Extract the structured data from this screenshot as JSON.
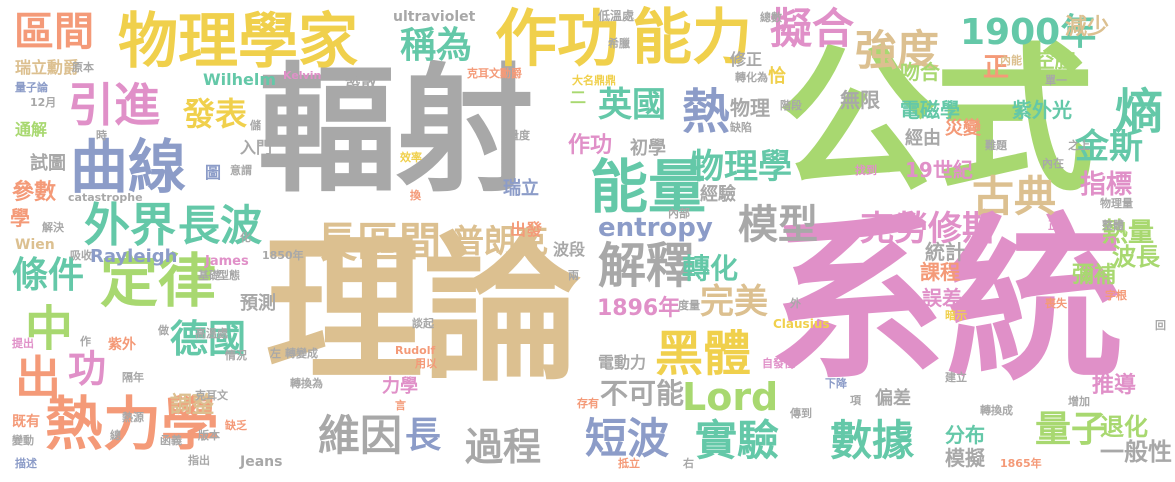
{
  "palette": {
    "gray": "#a8a8a8",
    "tan": "#dcc090",
    "pink": "#e090c8",
    "green": "#a8d870",
    "blue": "#8c9cc8",
    "orange": "#f49a78",
    "teal": "#64c8a8",
    "yellow": "#f0d04c"
  },
  "words": [
    {
      "text": "輻射",
      "color": "gray"
    },
    {
      "text": "理論",
      "color": "tan"
    },
    {
      "text": "系統",
      "color": "pink"
    },
    {
      "text": "公式",
      "color": "green"
    },
    {
      "text": "物理學家",
      "color": "yellow"
    },
    {
      "text": "作功",
      "color": "yellow"
    },
    {
      "text": "能力",
      "color": "yellow"
    },
    {
      "text": "曲線",
      "color": "blue"
    },
    {
      "text": "定律",
      "color": "green"
    },
    {
      "text": "熱力學",
      "color": "orange"
    },
    {
      "text": "能量",
      "color": "teal"
    },
    {
      "text": "外界",
      "color": "teal"
    },
    {
      "text": "長波",
      "color": "teal"
    },
    {
      "text": "解釋",
      "color": "gray"
    },
    {
      "text": "引進",
      "color": "pink"
    },
    {
      "text": "區間",
      "color": "orange"
    },
    {
      "text": "稱為",
      "color": "teal"
    },
    {
      "text": "擬合",
      "color": "pink"
    },
    {
      "text": "強度",
      "color": "tan"
    },
    {
      "text": "1900年",
      "color": "teal"
    },
    {
      "text": "熱",
      "color": "blue"
    },
    {
      "text": "英國",
      "color": "teal"
    },
    {
      "text": "發表",
      "color": "yellow"
    },
    {
      "text": "長區間",
      "color": "tan"
    },
    {
      "text": "普朗克",
      "color": "tan"
    },
    {
      "text": "模型",
      "color": "gray"
    },
    {
      "text": "古典",
      "color": "tan"
    },
    {
      "text": "克勞修斯",
      "color": "pink"
    },
    {
      "text": "物理學",
      "color": "teal"
    },
    {
      "text": "中",
      "color": "green"
    },
    {
      "text": "出",
      "color": "orange"
    },
    {
      "text": "功",
      "color": "pink"
    },
    {
      "text": "條件",
      "color": "teal"
    },
    {
      "text": "德國",
      "color": "teal"
    },
    {
      "text": "黑體",
      "color": "yellow"
    },
    {
      "text": "Lord",
      "color": "green"
    },
    {
      "text": "完美",
      "color": "tan"
    },
    {
      "text": "維因",
      "color": "gray"
    },
    {
      "text": "長",
      "color": "blue"
    },
    {
      "text": "過程",
      "color": "gray"
    },
    {
      "text": "短波",
      "color": "blue"
    },
    {
      "text": "實驗",
      "color": "teal"
    },
    {
      "text": "數據",
      "color": "teal"
    },
    {
      "text": "量子",
      "color": "green"
    },
    {
      "text": "熵",
      "color": "teal"
    },
    {
      "text": "金斯",
      "color": "teal"
    },
    {
      "text": "指標",
      "color": "pink"
    },
    {
      "text": "熱量",
      "color": "green"
    },
    {
      "text": "波長",
      "color": "green"
    },
    {
      "text": "退化",
      "color": "green"
    },
    {
      "text": "一般性",
      "color": "gray"
    },
    {
      "text": "entropy",
      "color": "blue"
    },
    {
      "text": "轉化",
      "color": "teal"
    },
    {
      "text": "不可能",
      "color": "gray"
    },
    {
      "text": "1896年",
      "color": "pink"
    },
    {
      "text": "電磁學",
      "color": "teal"
    },
    {
      "text": "紫外光",
      "color": "teal"
    },
    {
      "text": "空腔",
      "color": "green"
    },
    {
      "text": "吻合",
      "color": "green"
    },
    {
      "text": "減少",
      "color": "tan"
    },
    {
      "text": "19世紀",
      "color": "pink"
    },
    {
      "text": "災變",
      "color": "orange"
    },
    {
      "text": "正",
      "color": "orange"
    },
    {
      "text": "無限",
      "color": "gray"
    },
    {
      "text": "經由",
      "color": "gray"
    },
    {
      "text": "物理",
      "color": "gray"
    },
    {
      "text": "作功",
      "color": "pink"
    },
    {
      "text": "初學",
      "color": "gray"
    },
    {
      "text": "經驗",
      "color": "gray"
    },
    {
      "text": "彌補",
      "color": "green"
    },
    {
      "text": "統計",
      "color": "gray"
    },
    {
      "text": "課程",
      "color": "orange"
    },
    {
      "text": "誤差",
      "color": "pink"
    },
    {
      "text": "推導",
      "color": "pink"
    },
    {
      "text": "分布",
      "color": "teal"
    },
    {
      "text": "模擬",
      "color": "gray"
    },
    {
      "text": "電動力",
      "color": "gray"
    },
    {
      "text": "力學",
      "color": "pink"
    },
    {
      "text": "偏差",
      "color": "gray"
    },
    {
      "text": "瑞立",
      "color": "blue"
    },
    {
      "text": "波段",
      "color": "gray"
    },
    {
      "text": "出發",
      "color": "orange"
    },
    {
      "text": "預測",
      "color": "gray"
    },
    {
      "text": "參數",
      "color": "orange"
    },
    {
      "text": "調整",
      "color": "tan"
    },
    {
      "text": "試圖",
      "color": "gray"
    },
    {
      "text": "通解",
      "color": "green"
    },
    {
      "text": "瑞立勳爵",
      "color": "tan"
    },
    {
      "text": "量子論",
      "color": "blue"
    },
    {
      "text": "12月",
      "color": "gray"
    },
    {
      "text": "學",
      "color": "orange"
    },
    {
      "text": "Wien",
      "color": "tan"
    },
    {
      "text": "Wilhelm",
      "color": "teal"
    },
    {
      "text": "入門",
      "color": "gray"
    },
    {
      "text": "ultraviolet",
      "color": "gray"
    },
    {
      "text": "Kelvin",
      "color": "pink"
    },
    {
      "text": "克耳文勳爵",
      "color": "orange"
    },
    {
      "text": "大名鼎鼎",
      "color": "yellow"
    },
    {
      "text": "二",
      "color": "green"
    },
    {
      "text": "圖",
      "color": "blue"
    },
    {
      "text": "低溫處",
      "color": "gray"
    },
    {
      "text": "希臘",
      "color": "gray"
    },
    {
      "text": "總數",
      "color": "gray"
    },
    {
      "text": "修正",
      "color": "gray"
    },
    {
      "text": "恰",
      "color": "yellow"
    },
    {
      "text": "轉化為",
      "color": "gray"
    },
    {
      "text": "階段",
      "color": "gray"
    },
    {
      "text": "內能",
      "color": "tan"
    },
    {
      "text": "單一",
      "color": "gray"
    },
    {
      "text": "發散",
      "color": "gray"
    },
    {
      "text": "catastrophe",
      "color": "gray"
    },
    {
      "text": "Rayleigh",
      "color": "blue"
    },
    {
      "text": "James",
      "color": "pink"
    },
    {
      "text": "1850年",
      "color": "gray"
    },
    {
      "text": "Jeans",
      "color": "gray"
    },
    {
      "text": "高溫處",
      "color": "gray"
    },
    {
      "text": "紫外",
      "color": "orange"
    },
    {
      "text": "Clausius",
      "color": "yellow"
    },
    {
      "text": "Rudolf",
      "color": "orange"
    },
    {
      "text": "缺陷",
      "color": "gray"
    },
    {
      "text": "量度",
      "color": "gray"
    },
    {
      "text": "效率",
      "color": "yellow"
    },
    {
      "text": "意謂",
      "color": "gray"
    },
    {
      "text": "找到",
      "color": "pink"
    },
    {
      "text": "難題",
      "color": "gray"
    },
    {
      "text": "內在",
      "color": "gray"
    },
    {
      "text": "之上",
      "color": "gray"
    },
    {
      "text": "物理量",
      "color": "gray"
    },
    {
      "text": "正確",
      "color": "pink"
    },
    {
      "text": "價",
      "color": "pink"
    },
    {
      "text": "內部",
      "color": "gray"
    },
    {
      "text": "換",
      "color": "orange"
    },
    {
      "text": "型態",
      "color": "gray"
    },
    {
      "text": "度量",
      "color": "gray"
    },
    {
      "text": "喪失",
      "color": "orange"
    },
    {
      "text": "字根",
      "color": "orange"
    },
    {
      "text": "暗示",
      "color": "yellow"
    },
    {
      "text": "外",
      "color": "gray"
    },
    {
      "text": "談起",
      "color": "gray"
    },
    {
      "text": "用以",
      "color": "orange"
    },
    {
      "text": "轉變成",
      "color": "gray"
    },
    {
      "text": "轉換為",
      "color": "gray"
    },
    {
      "text": "言",
      "color": "orange"
    },
    {
      "text": "項",
      "color": "gray"
    },
    {
      "text": "傳到",
      "color": "gray"
    },
    {
      "text": "轉換成",
      "color": "gray"
    },
    {
      "text": "建立",
      "color": "gray"
    },
    {
      "text": "下降",
      "color": "blue"
    },
    {
      "text": "自發性",
      "color": "pink"
    },
    {
      "text": "增加",
      "color": "gray"
    },
    {
      "text": "1865年",
      "color": "orange"
    },
    {
      "text": "存有",
      "color": "orange"
    },
    {
      "text": "抵立",
      "color": "orange"
    },
    {
      "text": "右",
      "color": "gray"
    },
    {
      "text": "兩",
      "color": "gray"
    },
    {
      "text": "左",
      "color": "gray"
    },
    {
      "text": "化",
      "color": "gray"
    },
    {
      "text": "時",
      "color": "gray"
    },
    {
      "text": "儲",
      "color": "gray"
    },
    {
      "text": "既有",
      "color": "orange"
    },
    {
      "text": "變動",
      "color": "gray"
    },
    {
      "text": "總",
      "color": "gray"
    },
    {
      "text": "函義",
      "color": "gray"
    },
    {
      "text": "版本",
      "color": "gray"
    },
    {
      "text": "描述",
      "color": "blue"
    },
    {
      "text": "指出",
      "color": "gray"
    },
    {
      "text": "缺乏",
      "color": "orange"
    },
    {
      "text": "熱源",
      "color": "gray"
    },
    {
      "text": "隔年",
      "color": "gray"
    },
    {
      "text": "情況",
      "color": "gray"
    },
    {
      "text": "提出",
      "color": "pink"
    },
    {
      "text": "作",
      "color": "gray"
    },
    {
      "text": "做",
      "color": "gray"
    },
    {
      "text": "吸收",
      "color": "gray"
    },
    {
      "text": "解決",
      "color": "gray"
    },
    {
      "text": "原本",
      "color": "gray"
    },
    {
      "text": "基礎",
      "color": "gray"
    },
    {
      "text": "整體",
      "color": "gray"
    },
    {
      "text": "回",
      "color": "gray"
    },
    {
      "text": "克耳文",
      "color": "gray"
    }
  ]
}
